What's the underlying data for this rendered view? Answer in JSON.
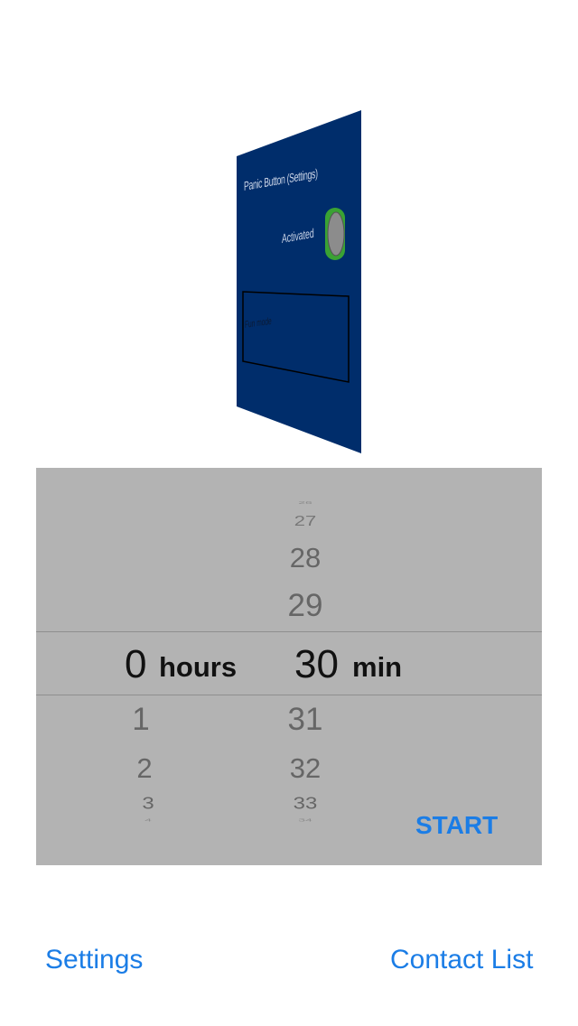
{
  "panel": {
    "title": "Panic Button (Settings)",
    "activated_label": "Activated",
    "toggle_on": true,
    "mode_label": "Fun mode",
    "bg_color": "#002d6b",
    "toggle_color": "#3aa233"
  },
  "picker": {
    "minutes_above": [
      "26",
      "27",
      "28",
      "29"
    ],
    "hours_selected": "0",
    "hours_unit": "hours",
    "minutes_selected": "30",
    "minutes_unit": "min",
    "hours_below": [
      "1",
      "2",
      "3",
      "4"
    ],
    "minutes_below": [
      "31",
      "32",
      "33",
      "34"
    ],
    "start_label": "START"
  },
  "bottom": {
    "settings_label": "Settings",
    "contacts_label": "Contact List"
  }
}
